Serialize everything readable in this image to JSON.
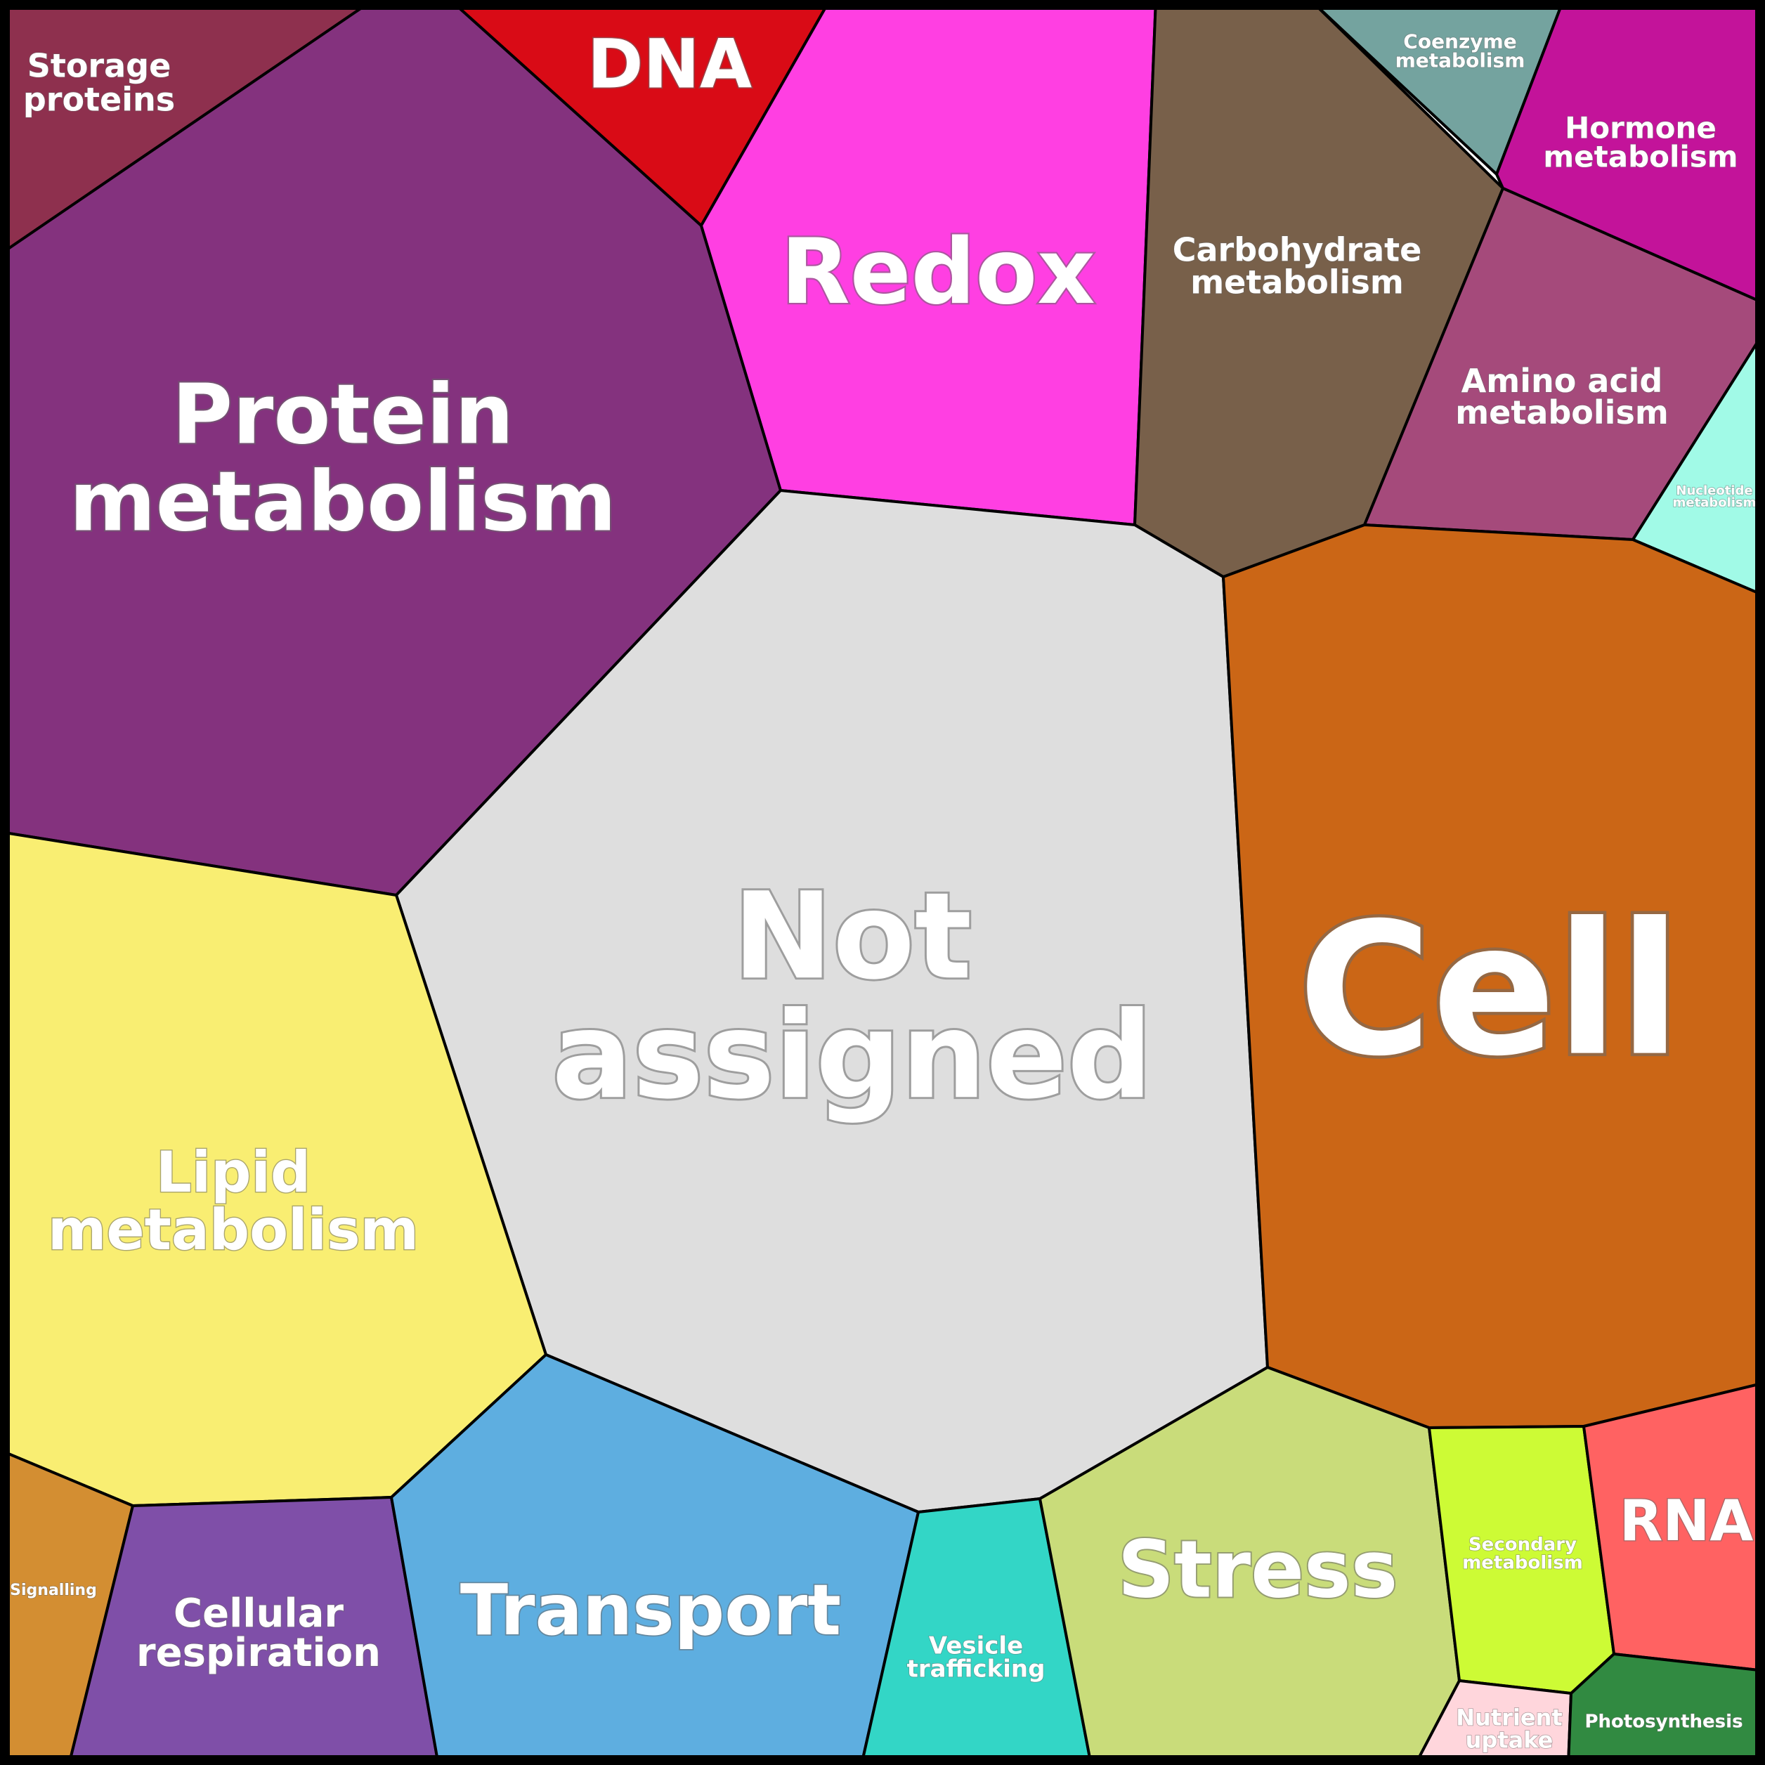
{
  "diagram": {
    "type": "voronoi-treemap",
    "regions": [
      {
        "id": "storage-proteins",
        "label": [
          "Storage",
          "proteins"
        ],
        "color": "#8e304e"
      },
      {
        "id": "protein-metabolism",
        "label": [
          "Protein",
          "metabolism"
        ],
        "color": "#84327e"
      },
      {
        "id": "dna",
        "label": [
          "DNA"
        ],
        "color": "#d90b16"
      },
      {
        "id": "redox",
        "label": [
          "Redox"
        ],
        "color": "#ff3fe2"
      },
      {
        "id": "carbohydrate-metabolism",
        "label": [
          "Carbohydrate",
          "metabolism"
        ],
        "color": "#78604a"
      },
      {
        "id": "coenzyme-metabolism",
        "label": [
          "Coenzyme",
          "metabolism"
        ],
        "color": "#74a39f"
      },
      {
        "id": "hormone-metabolism",
        "label": [
          "Hormone",
          "metabolism"
        ],
        "color": "#c3139a"
      },
      {
        "id": "amino-acid-metabolism",
        "label": [
          "Amino acid",
          "metabolism"
        ],
        "color": "#a54a7b"
      },
      {
        "id": "nucleotide-metabolism",
        "label": [
          "Nucleotide",
          "metabolism"
        ],
        "color": "#a1fae7"
      },
      {
        "id": "not-assigned",
        "label": [
          "Not",
          "assigned"
        ],
        "color": "#dedede"
      },
      {
        "id": "cell",
        "label": [
          "Cell"
        ],
        "color": "#cb6616"
      },
      {
        "id": "lipid-metabolism",
        "label": [
          "Lipid",
          "metabolism"
        ],
        "color": "#f9ee72"
      },
      {
        "id": "signalling",
        "label": [
          "Signalling"
        ],
        "color": "#d38e32"
      },
      {
        "id": "cellular-respiration",
        "label": [
          "Cellular",
          "respiration"
        ],
        "color": "#7f4fa8"
      },
      {
        "id": "transport",
        "label": [
          "Transport"
        ],
        "color": "#5eaee0"
      },
      {
        "id": "vesicle-trafficking",
        "label": [
          "Vesicle",
          "trafficking"
        ],
        "color": "#33d6c6"
      },
      {
        "id": "stress",
        "label": [
          "Stress"
        ],
        "color": "#c9dc7a"
      },
      {
        "id": "secondary-metabolism",
        "label": [
          "Secondary",
          "metabolism"
        ],
        "color": "#cdfb35"
      },
      {
        "id": "rna",
        "label": [
          "RNA"
        ],
        "color": "#ff6262"
      },
      {
        "id": "nutrient-uptake",
        "label": [
          "Nutrient",
          "uptake"
        ],
        "color": "#ffd6dc"
      },
      {
        "id": "photosynthesis",
        "label": [
          "Photosynthesis"
        ],
        "color": "#318a41"
      }
    ]
  }
}
